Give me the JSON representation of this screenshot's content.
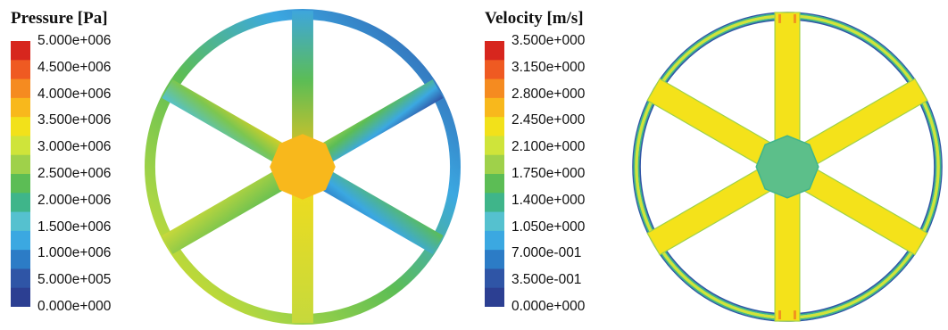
{
  "pressure": {
    "title": "Pressure [Pa]",
    "levels": [
      "5.000e+006",
      "4.500e+006",
      "4.000e+006",
      "3.500e+006",
      "3.000e+006",
      "2.500e+006",
      "2.000e+006",
      "1.500e+006",
      "1.000e+006",
      "5.000e+005",
      "0.000e+000"
    ],
    "bands": [
      "#d7261e",
      "#ef5a22",
      "#f58b20",
      "#f8b81c",
      "#f2e11a",
      "#cfe43a",
      "#9fd14a",
      "#5cbd55",
      "#3fb58a",
      "#55c1cf",
      "#3ba8e1",
      "#2c7cc6",
      "#2f55a6",
      "#2c3f92"
    ]
  },
  "velocity": {
    "title": "Velocity [m/s]",
    "levels": [
      "3.500e+000",
      "3.150e+000",
      "2.800e+000",
      "2.450e+000",
      "2.100e+000",
      "1.750e+000",
      "1.400e+000",
      "1.050e+000",
      "7.000e-001",
      "3.500e-001",
      "0.000e+000"
    ],
    "bands": [
      "#d7261e",
      "#ef5a22",
      "#f58b20",
      "#f8b81c",
      "#f2e11a",
      "#cfe43a",
      "#9fd14a",
      "#5cbd55",
      "#3fb58a",
      "#55c1cf",
      "#3ba8e1",
      "#2c7cc6",
      "#2f55a6",
      "#2c3f92"
    ]
  }
}
